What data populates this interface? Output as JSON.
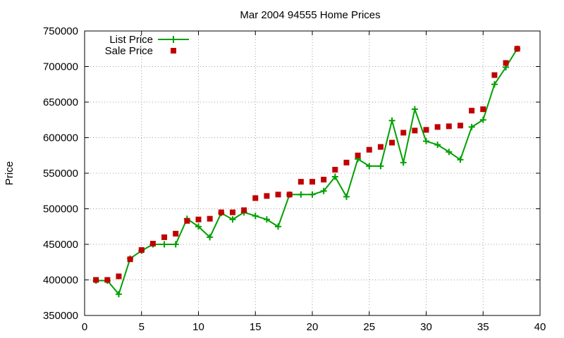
{
  "chart_data": {
    "type": "line",
    "title": "Mar 2004 94555 Home Prices",
    "xlabel": "",
    "ylabel": "Price",
    "xlim": [
      0,
      40
    ],
    "ylim": [
      350000,
      750000
    ],
    "xticks": [
      0,
      5,
      10,
      15,
      20,
      25,
      30,
      35,
      40
    ],
    "yticks": [
      350000,
      400000,
      450000,
      500000,
      550000,
      600000,
      650000,
      700000,
      750000
    ],
    "grid": true,
    "legend_position": "top-left",
    "series": [
      {
        "name": "List Price",
        "style": "line-with-plus-markers",
        "color": "#00a000",
        "x": [
          1,
          2,
          3,
          4,
          5,
          6,
          7,
          8,
          9,
          10,
          11,
          12,
          13,
          14,
          15,
          16,
          17,
          18,
          19,
          20,
          21,
          22,
          23,
          24,
          25,
          26,
          27,
          28,
          29,
          30,
          31,
          32,
          33,
          34,
          35,
          36,
          37,
          38
        ],
        "values": [
          399000,
          399000,
          380000,
          430000,
          441000,
          450000,
          450000,
          450000,
          486000,
          475000,
          460000,
          494000,
          485000,
          495000,
          490000,
          485000,
          475000,
          520000,
          520000,
          520000,
          525000,
          545000,
          517000,
          570000,
          560000,
          560000,
          624000,
          565000,
          640000,
          595000,
          590000,
          580000,
          569000,
          615000,
          625000,
          675000,
          699000,
          725000
        ]
      },
      {
        "name": "Sale Price",
        "style": "square-markers",
        "color": "#c00000",
        "x": [
          1,
          2,
          3,
          4,
          5,
          6,
          7,
          8,
          9,
          10,
          11,
          12,
          13,
          14,
          15,
          16,
          17,
          18,
          19,
          20,
          21,
          22,
          23,
          24,
          25,
          26,
          27,
          28,
          29,
          30,
          31,
          32,
          33,
          34,
          35,
          36,
          37,
          38
        ],
        "values": [
          400000,
          400000,
          405000,
          429000,
          442000,
          451000,
          460000,
          465000,
          483000,
          485000,
          486000,
          495000,
          495000,
          498000,
          515000,
          518000,
          520000,
          520000,
          538000,
          538000,
          541000,
          555000,
          565000,
          575000,
          583000,
          587000,
          593000,
          607000,
          610000,
          611000,
          615000,
          616000,
          617000,
          638000,
          640000,
          688000,
          705000,
          725000
        ]
      }
    ]
  }
}
